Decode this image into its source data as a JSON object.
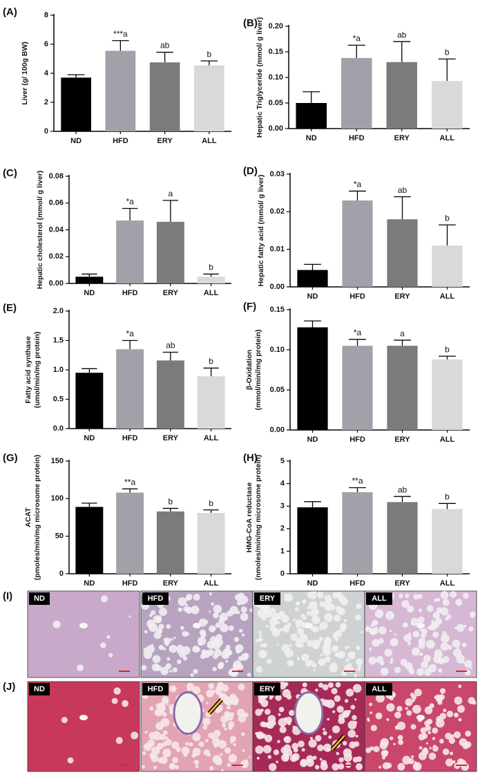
{
  "chart_data": [
    {
      "type": "bar",
      "panel": "(A)",
      "ylabel": [
        "Liver (g/ 100g BW)"
      ],
      "categories": [
        "ND",
        "HFD",
        "ERY",
        "ALL"
      ],
      "values": [
        3.7,
        5.55,
        4.75,
        4.55
      ],
      "errors": [
        0.2,
        0.7,
        0.7,
        0.3
      ],
      "annotations": [
        null,
        "***a",
        "ab",
        "b"
      ],
      "colors": [
        "#000000",
        "#a1a1a9",
        "#7b7b7b",
        "#d9d9d9"
      ],
      "ylim": [
        0,
        8
      ],
      "yticks": [
        0,
        2,
        4,
        6,
        8
      ]
    },
    {
      "type": "bar",
      "panel": "(B)",
      "ylabel": [
        "Hepatic Triglyceride (mmol/ g liver)"
      ],
      "categories": [
        "ND",
        "HFD",
        "ERY",
        "ALL"
      ],
      "values": [
        0.05,
        0.138,
        0.13,
        0.093
      ],
      "errors": [
        0.022,
        0.025,
        0.04,
        0.043
      ],
      "annotations": [
        null,
        "*a",
        "ab",
        "b"
      ],
      "colors": [
        "#000000",
        "#a1a1a9",
        "#7b7b7b",
        "#d9d9d9"
      ],
      "ylim": [
        0,
        0.2
      ],
      "yticks": [
        {
          "value": 0,
          "label": "0.00"
        },
        {
          "value": 0.05,
          "label": "0.05"
        },
        {
          "value": 0.1,
          "label": "0.10"
        },
        {
          "value": 0.15,
          "label": "0.15"
        },
        {
          "value": 0.2,
          "label": "0.20"
        }
      ]
    },
    {
      "type": "bar",
      "panel": "(C)",
      "ylabel": [
        "Hepatic cholesterol (mmol/ g liver)"
      ],
      "categories": [
        "ND",
        "HFD",
        "ERY",
        "ALL"
      ],
      "values": [
        0.005,
        0.047,
        0.046,
        0.005
      ],
      "errors": [
        0.002,
        0.009,
        0.016,
        0.002
      ],
      "annotations": [
        null,
        "*a",
        "a",
        "b"
      ],
      "colors": [
        "#000000",
        "#a1a1a9",
        "#7b7b7b",
        "#d9d9d9"
      ],
      "ylim": [
        0,
        0.08
      ],
      "yticks": [
        {
          "value": 0,
          "label": "0.00"
        },
        {
          "value": 0.02,
          "label": "0.02"
        },
        {
          "value": 0.04,
          "label": "0.04"
        },
        {
          "value": 0.06,
          "label": "0.06"
        },
        {
          "value": 0.08,
          "label": "0.08"
        }
      ]
    },
    {
      "type": "bar",
      "panel": "(D)",
      "ylabel": [
        "Hepatic fatty acid (mmol/ g liver)"
      ],
      "categories": [
        "ND",
        "HFD",
        "ERY",
        "ALL"
      ],
      "values": [
        0.0045,
        0.023,
        0.018,
        0.011
      ],
      "errors": [
        0.0015,
        0.0025,
        0.006,
        0.0055
      ],
      "annotations": [
        null,
        "*a",
        "ab",
        "b"
      ],
      "colors": [
        "#000000",
        "#a1a1a9",
        "#7b7b7b",
        "#d9d9d9"
      ],
      "ylim": [
        0,
        0.03
      ],
      "yticks": [
        {
          "value": 0,
          "label": "0.00"
        },
        {
          "value": 0.01,
          "label": "0.01"
        },
        {
          "value": 0.02,
          "label": "0.02"
        },
        {
          "value": 0.03,
          "label": "0.03"
        }
      ]
    },
    {
      "type": "bar",
      "panel": "(E)",
      "ylabel": [
        "Fatty acid synthase",
        "(umol/min/mg protein)"
      ],
      "categories": [
        "ND",
        "HFD",
        "ERY",
        "ALL"
      ],
      "values": [
        0.95,
        1.35,
        1.16,
        0.89
      ],
      "errors": [
        0.07,
        0.15,
        0.14,
        0.14
      ],
      "annotations": [
        null,
        "*a",
        "ab",
        "b"
      ],
      "colors": [
        "#000000",
        "#a1a1a9",
        "#7b7b7b",
        "#d9d9d9"
      ],
      "ylim": [
        0,
        2
      ],
      "yticks": [
        {
          "value": 0,
          "label": "0.0"
        },
        {
          "value": 0.5,
          "label": "0.5"
        },
        {
          "value": 1,
          "label": "1.0"
        },
        {
          "value": 1.5,
          "label": "1.5"
        },
        {
          "value": 2,
          "label": "2.0"
        }
      ]
    },
    {
      "type": "bar",
      "panel": "(F)",
      "ylabel": [
        "β-Oxidation",
        "(mmol/min//mg protein)"
      ],
      "categories": [
        "ND",
        "HFD",
        "ERY",
        "ALL"
      ],
      "values": [
        0.128,
        0.105,
        0.105,
        0.088
      ],
      "errors": [
        0.008,
        0.008,
        0.007,
        0.004
      ],
      "annotations": [
        null,
        "*a",
        "a",
        "b"
      ],
      "colors": [
        "#000000",
        "#a1a1a9",
        "#7b7b7b",
        "#d9d9d9"
      ],
      "ylim": [
        0,
        0.15
      ],
      "yticks": [
        {
          "value": 0,
          "label": "0.00"
        },
        {
          "value": 0.05,
          "label": "0.05"
        },
        {
          "value": 0.1,
          "label": "0.10"
        },
        {
          "value": 0.15,
          "label": "0.15"
        }
      ]
    },
    {
      "type": "bar",
      "panel": "(G)",
      "ylabel": [
        "ACAT",
        "(pmoles/min/mg microsome protein)"
      ],
      "categories": [
        "ND",
        "HFD",
        "ERY",
        "ALL"
      ],
      "values": [
        89,
        108,
        83,
        81
      ],
      "errors": [
        5,
        5,
        4,
        4
      ],
      "annotations": [
        null,
        "**a",
        "b",
        "b"
      ],
      "colors": [
        "#000000",
        "#a1a1a9",
        "#7b7b7b",
        "#d9d9d9"
      ],
      "ylim": [
        0,
        150
      ],
      "yticks": [
        0,
        50,
        100,
        150
      ]
    },
    {
      "type": "bar",
      "panel": "(H)",
      "ylabel": [
        "HMG-CoA reductase",
        "(nmoles/min/mg microsome protein)"
      ],
      "categories": [
        "ND",
        "HFD",
        "ERY",
        "ALL"
      ],
      "values": [
        2.95,
        3.62,
        3.18,
        2.87
      ],
      "errors": [
        0.25,
        0.2,
        0.25,
        0.25
      ],
      "annotations": [
        null,
        "**a",
        "ab",
        "b"
      ],
      "colors": [
        "#000000",
        "#a1a1a9",
        "#7b7b7b",
        "#d9d9d9"
      ],
      "ylim": [
        0,
        5
      ],
      "yticks": [
        0,
        1,
        2,
        3,
        4,
        5
      ]
    }
  ],
  "histology": [
    {
      "panel": "(I)",
      "images": [
        "ND",
        "HFD",
        "ERY",
        "ALL"
      ]
    },
    {
      "panel": "(J)",
      "images": [
        "ND",
        "HFD",
        "ERY",
        "ALL"
      ]
    }
  ]
}
